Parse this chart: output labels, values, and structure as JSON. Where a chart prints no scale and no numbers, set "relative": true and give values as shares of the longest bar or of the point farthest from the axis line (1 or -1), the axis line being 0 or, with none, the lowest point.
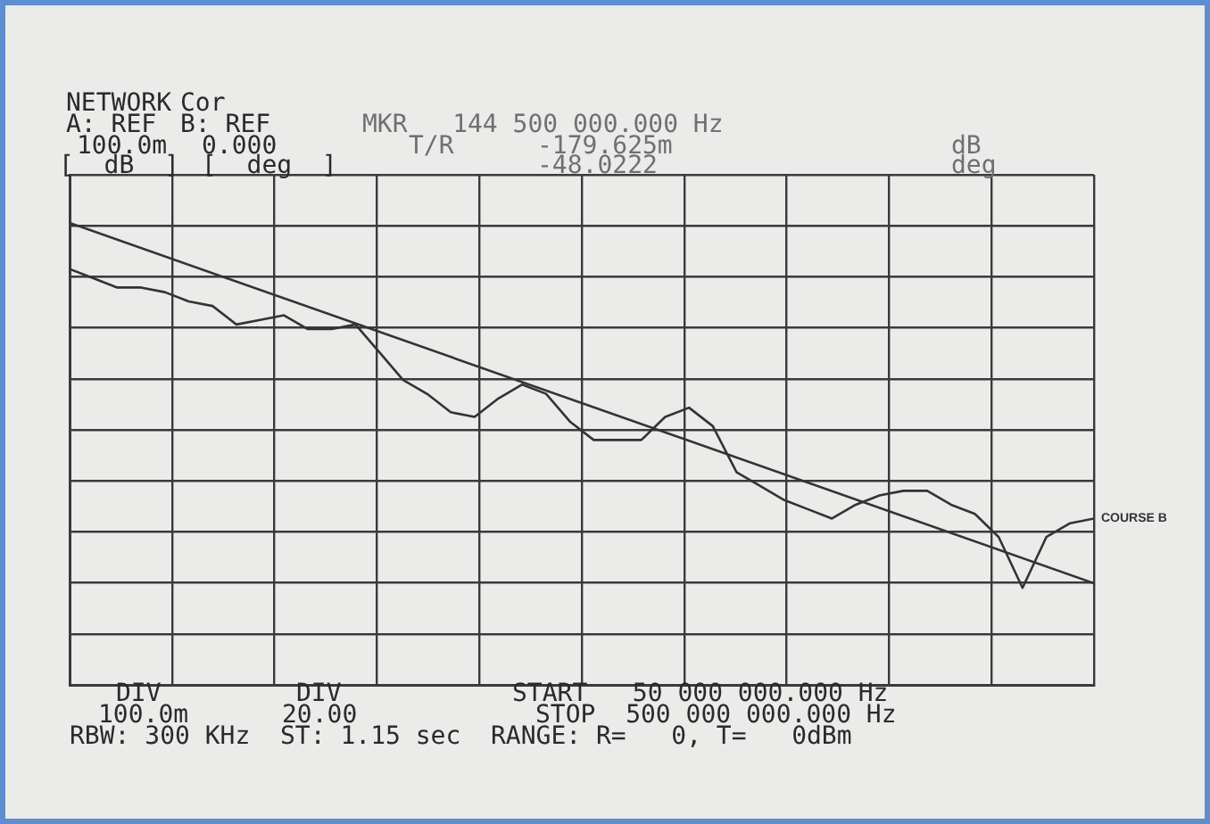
{
  "chart_data": {
    "type": "line",
    "relative": true,
    "grid": true,
    "marker": "none",
    "line_style": "solid",
    "legend": false,
    "categories": [
      null,
      null,
      null,
      null,
      null,
      null,
      null,
      null,
      null,
      null,
      null,
      null,
      null,
      null,
      null,
      null,
      null,
      null,
      null,
      null,
      null,
      null,
      null,
      null,
      null,
      null,
      null,
      null,
      null,
      null,
      null,
      null,
      null,
      null,
      null,
      null,
      null,
      null,
      null,
      null,
      null,
      null,
      null,
      null
    ],
    "series": [
      {
        "name": "COURSE B",
        "color": "#333333",
        "values": [
          0.9,
          0.88,
          0.86,
          0.86,
          0.85,
          0.83,
          0.82,
          0.78,
          0.79,
          0.8,
          0.77,
          0.77,
          0.78,
          0.72,
          0.66,
          0.63,
          0.59,
          0.58,
          0.62,
          0.65,
          0.63,
          0.57,
          0.53,
          0.53,
          0.53,
          0.58,
          0.6,
          0.56,
          0.46,
          0.43,
          0.4,
          0.38,
          0.36,
          0.39,
          0.41,
          0.42,
          0.42,
          0.39,
          0.37,
          0.32,
          0.21,
          0.32,
          0.35,
          0.36
        ]
      },
      {
        "color": "#333333",
        "values": [
          1.0,
          null,
          null,
          null,
          null,
          null,
          null,
          null,
          null,
          null,
          null,
          null,
          null,
          null,
          null,
          null,
          null,
          null,
          null,
          null,
          null,
          null,
          null,
          null,
          null,
          null,
          null,
          null,
          null,
          null,
          null,
          null,
          null,
          null,
          null,
          null,
          null,
          null,
          null,
          null,
          null,
          null,
          null,
          0.22
        ]
      }
    ],
    "annotations": [
      "NETWORK",
      "Cor",
      "A: REF",
      "B: REF",
      "MKR   144 500 000.000 Hz",
      "100.0m",
      "0.000",
      "T/R",
      "-179.625m",
      "dB",
      "[  dB  ]",
      "[  deg  ]",
      "-48.0222",
      "deg",
      "DIV",
      "DIV",
      "100.0m",
      "20.00",
      "START   50 000 000.000 Hz",
      "STOP  500 000 000.000 Hz",
      "RBW: 300 KHz  ST: 1.15 sec  RANGE: R=   0, T=   0dBm"
    ]
  }
}
